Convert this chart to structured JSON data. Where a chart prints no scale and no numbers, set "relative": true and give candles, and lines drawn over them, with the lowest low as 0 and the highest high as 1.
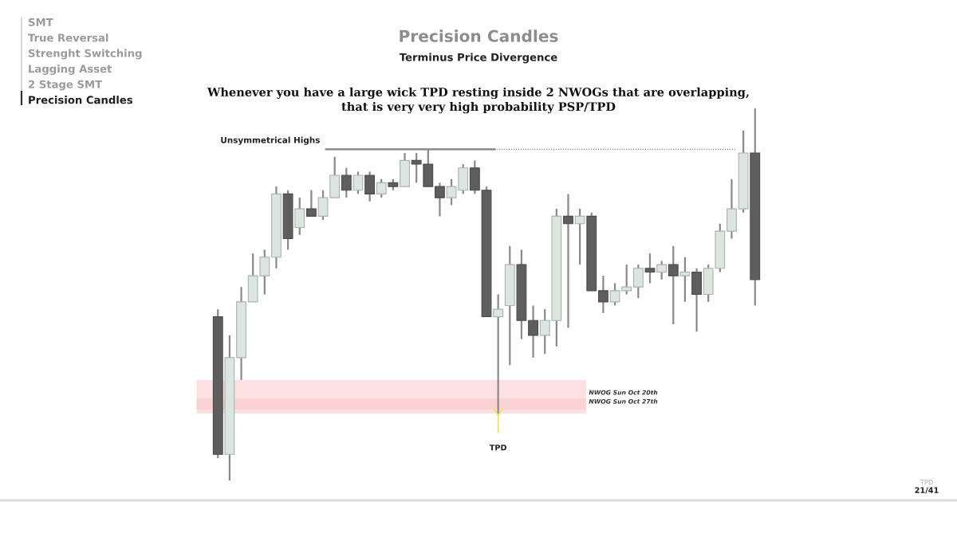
{
  "chart_data": {
    "type": "candlestick",
    "title": "Precision Candles",
    "subtitle": "Terminus Price Divergence",
    "relative": true,
    "categories": [
      null,
      null,
      null,
      null,
      null,
      null,
      null,
      null,
      null,
      null,
      null,
      null,
      null,
      null,
      null,
      null,
      null,
      null,
      null,
      null,
      null,
      null,
      null,
      null,
      null,
      null,
      null,
      null,
      null,
      null,
      null,
      null,
      null,
      null,
      null,
      null,
      null,
      null,
      null,
      null,
      null,
      null,
      null,
      null,
      null,
      null,
      null
    ],
    "colors": [
      "#5e5e5e",
      "#dce6e0",
      "#dce6e0",
      "#dce6e0",
      "#dce6e0",
      "#dce6e0",
      "#5e5e5e",
      "#dce6e0",
      "#5e5e5e",
      "#dce6e0",
      "#dce6e0",
      "#5e5e5e",
      "#dce6e0",
      "#5e5e5e",
      "#dce6e0",
      "#5e5e5e",
      "#dce6e0",
      "#5e5e5e",
      "#5e5e5e",
      "#5e5e5e",
      "#dce6e0",
      "#dce6e0",
      "#5e5e5e",
      "#5e5e5e",
      "#dce6e0",
      "#dce6e0",
      "#5e5e5e",
      "#5e5e5e",
      "#dce6e0",
      "#dce6e0",
      "#5e5e5e",
      "#dce6e0",
      "#5e5e5e",
      "#5e5e5e",
      "#dce6e0",
      "#dce6e0",
      "#dce6e0",
      "#5e5e5e",
      "#dce6e0",
      "#5e5e5e",
      "#dce6e0",
      "#5e5e5e",
      "#dce6e0",
      "#dce6e0",
      "#dce6e0",
      "#dce6e0",
      "#5e5e5e"
    ],
    "ohlc": [
      [
        0.44,
        0.46,
        0.06,
        0.07
      ],
      [
        0.07,
        0.39,
        0,
        0.33
      ],
      [
        0.33,
        0.52,
        0.27,
        0.48
      ],
      [
        0.48,
        0.61,
        0.48,
        0.55
      ],
      [
        0.55,
        0.62,
        0.5,
        0.6
      ],
      [
        0.6,
        0.79,
        0.57,
        0.77
      ],
      [
        0.77,
        0.78,
        0.62,
        0.65
      ],
      [
        0.68,
        0.76,
        0.66,
        0.73
      ],
      [
        0.73,
        0.78,
        0.71,
        0.71
      ],
      [
        0.71,
        0.78,
        0.7,
        0.76
      ],
      [
        0.76,
        0.87,
        0.76,
        0.82
      ],
      [
        0.82,
        0.84,
        0.76,
        0.78
      ],
      [
        0.78,
        0.83,
        0.77,
        0.82
      ],
      [
        0.82,
        0.83,
        0.75,
        0.77
      ],
      [
        0.77,
        0.81,
        0.76,
        0.8
      ],
      [
        0.8,
        0.81,
        0.78,
        0.79
      ],
      [
        0.79,
        0.88,
        0.79,
        0.86
      ],
      [
        0.86,
        0.88,
        0.8,
        0.85
      ],
      [
        0.85,
        0.89,
        0.79,
        0.79
      ],
      [
        0.79,
        0.8,
        0.71,
        0.76
      ],
      [
        0.76,
        0.81,
        0.74,
        0.79
      ],
      [
        0.78,
        0.85,
        0.77,
        0.84
      ],
      [
        0.84,
        0.86,
        0.77,
        0.78
      ],
      [
        0.78,
        0.79,
        0.44,
        0.44
      ],
      [
        0.44,
        0.5,
        0.18,
        0.46
      ],
      [
        0.47,
        0.63,
        0.31,
        0.58
      ],
      [
        0.58,
        0.62,
        0.38,
        0.43
      ],
      [
        0.43,
        0.47,
        0.33,
        0.39
      ],
      [
        0.39,
        0.46,
        0.34,
        0.43
      ],
      [
        0.43,
        0.73,
        0.36,
        0.71
      ],
      [
        0.71,
        0.77,
        0.41,
        0.69
      ],
      [
        0.69,
        0.73,
        0.58,
        0.71
      ],
      [
        0.71,
        0.72,
        0.51,
        0.51
      ],
      [
        0.51,
        0.55,
        0.45,
        0.48
      ],
      [
        0.48,
        0.53,
        0.47,
        0.51
      ],
      [
        0.51,
        0.58,
        0.5,
        0.52
      ],
      [
        0.52,
        0.58,
        0.49,
        0.57
      ],
      [
        0.57,
        0.61,
        0.53,
        0.56
      ],
      [
        0.56,
        0.59,
        0.54,
        0.58
      ],
      [
        0.58,
        0.63,
        0.42,
        0.55
      ],
      [
        0.55,
        0.6,
        0.48,
        0.56
      ],
      [
        0.56,
        0.57,
        0.4,
        0.5
      ],
      [
        0.5,
        0.58,
        0.48,
        0.57
      ],
      [
        0.57,
        0.69,
        0.56,
        0.67
      ],
      [
        0.67,
        0.81,
        0.65,
        0.73
      ],
      [
        0.73,
        0.94,
        0.72,
        0.88
      ],
      [
        0.88,
        1,
        0.47,
        0.54
      ]
    ],
    "bands": [
      {
        "axis": "y",
        "from": 0.19,
        "to": 0.27,
        "label": "NWOG Sun Oct 20th",
        "color": "#fbc8cb"
      },
      {
        "axis": "y",
        "from": 0.18,
        "to": 0.22,
        "label": "NWOG Sun Oct 27th",
        "color": "#fbc8cb"
      }
    ],
    "ref_lines": [
      {
        "axis": "y",
        "value": 0.89,
        "label": "Unsymmetrical Highs",
        "color": "#808080",
        "line_style": "solid"
      },
      {
        "axis": "y",
        "value": 0.89,
        "label": null,
        "color": "#808080",
        "line_style": "dotted"
      }
    ],
    "annotations": [
      "SMT",
      "True Reversal",
      "Strenght Switching",
      "Lagging Asset",
      "2 Stage SMT",
      "Precision Candles",
      "Whenever you have a large wick TPD resting inside 2 NWOGs that are overlapping,\nthat is very very high probability PSP/TPD",
      "TPD",
      "TPD",
      "21/41"
    ]
  }
}
